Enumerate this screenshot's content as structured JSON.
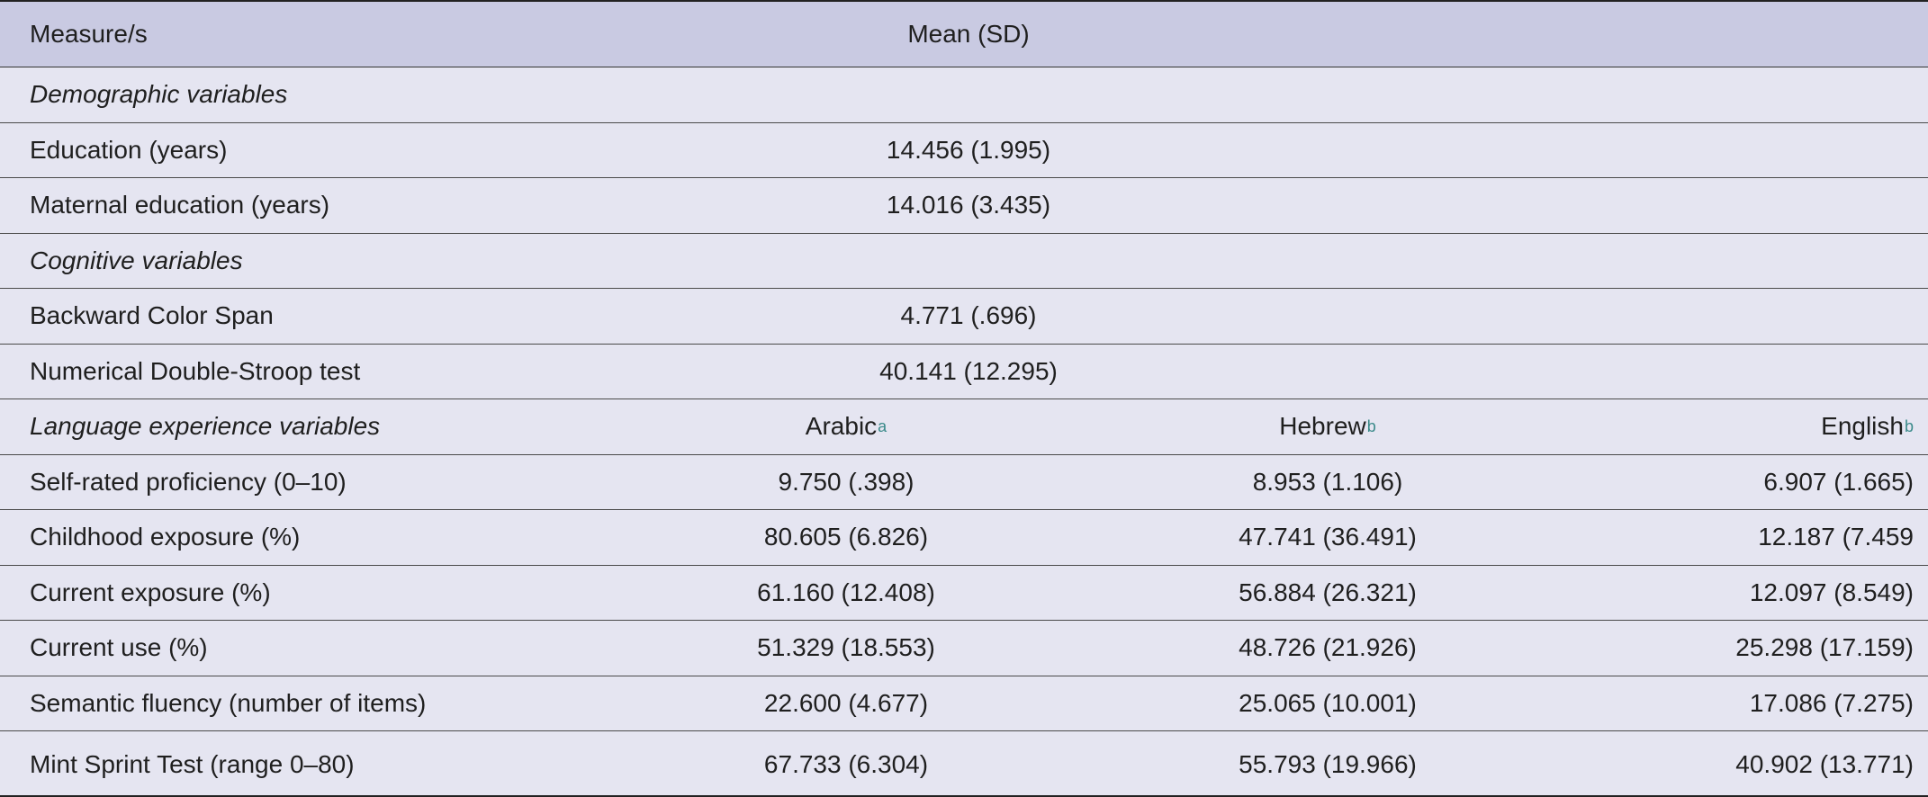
{
  "header": {
    "measure": "Measure/s",
    "stat": "Mean (SD)"
  },
  "sections": {
    "demographic": "Demographic variables",
    "cognitive": "Cognitive variables",
    "language": "Language experience variables"
  },
  "columns": {
    "arabic": "Arabic",
    "arabic_note": "a",
    "hebrew": "Hebrew",
    "hebrew_note": "b",
    "english": "English",
    "english_note": "b"
  },
  "single_rows": [
    {
      "label": "Education (years)",
      "value": "14.456 (1.995)"
    },
    {
      "label": "Maternal education (years)",
      "value": "14.016 (3.435)"
    },
    {
      "label": "Backward Color Span",
      "value": "4.771 (.696)"
    },
    {
      "label": "Numerical Double-Stroop test",
      "value": "40.141 (12.295)"
    }
  ],
  "language_rows": [
    {
      "label": "Self-rated proficiency (0–10)",
      "arabic": "9.750 (.398)",
      "hebrew": "8.953 (1.106)",
      "english": "6.907 (1.665)"
    },
    {
      "label": "Childhood exposure (%)",
      "arabic": "80.605 (6.826)",
      "hebrew": "47.741 (36.491)",
      "english": "12.187 (7.459"
    },
    {
      "label": "Current exposure (%)",
      "arabic": "61.160 (12.408)",
      "hebrew": "56.884 (26.321)",
      "english": "12.097 (8.549)"
    },
    {
      "label": "Current use (%)",
      "arabic": "51.329 (18.553)",
      "hebrew": "48.726 (21.926)",
      "english": "25.298 (17.159)"
    },
    {
      "label": "Semantic fluency (number of items)",
      "arabic": "22.600 (4.677)",
      "hebrew": "25.065 (10.001)",
      "english": "17.086 (7.275)"
    },
    {
      "label": "Mint Sprint Test (range 0–80)",
      "arabic": "67.733 (6.304)",
      "hebrew": "55.793 (19.966)",
      "english": "40.902 (13.771)"
    }
  ]
}
